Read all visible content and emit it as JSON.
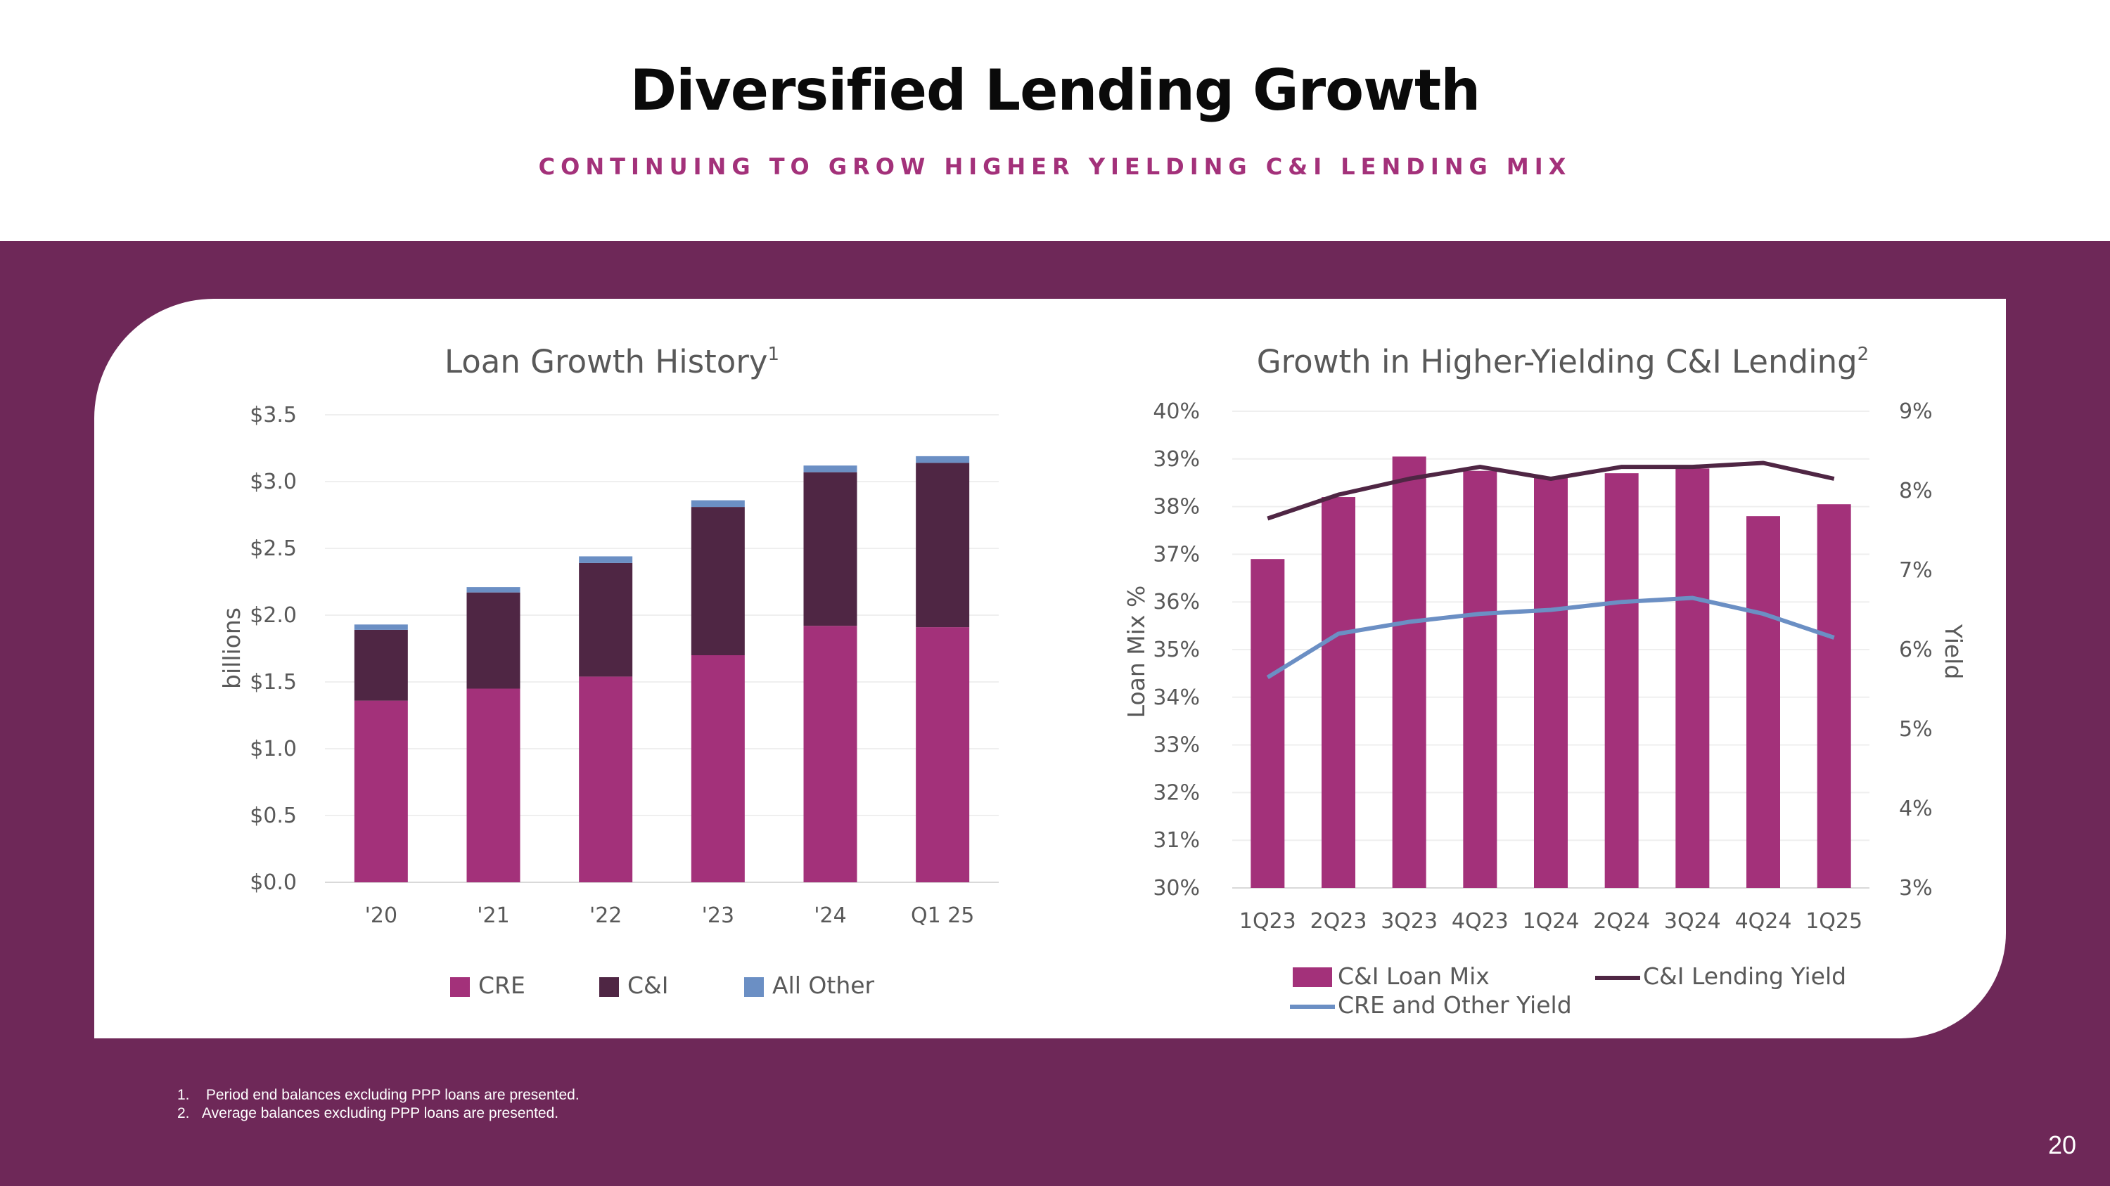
{
  "header": {
    "title": "Diversified Lending Growth",
    "subtitle": "CONTINUING TO GROW HIGHER YIELDING C&I LENDING MIX"
  },
  "colors": {
    "cre": "#a3317a",
    "ci": "#4f2644",
    "other": "#6b8fc4",
    "cre_other_yield_line": "#6b8fc4",
    "ci_yield_line": "#4f2644",
    "band": "#6e2858"
  },
  "chart_data": [
    {
      "type": "bar",
      "stacked": true,
      "title": "Loan Growth History",
      "title_sup": "1",
      "ylabel": "billions",
      "ylim": [
        0,
        3.5
      ],
      "yticks": [
        "$0.0",
        "$0.5",
        "$1.0",
        "$1.5",
        "$2.0",
        "$2.5",
        "$3.0",
        "$3.5"
      ],
      "categories": [
        "'20",
        "'21",
        "'22",
        "'23",
        "'24",
        "Q1 25"
      ],
      "series": [
        {
          "name": "CRE",
          "values": [
            1.36,
            1.45,
            1.54,
            1.7,
            1.92,
            1.91
          ]
        },
        {
          "name": "C&I",
          "values": [
            0.53,
            0.72,
            0.85,
            1.11,
            1.15,
            1.23
          ]
        },
        {
          "name": "All Other",
          "values": [
            0.04,
            0.04,
            0.05,
            0.05,
            0.05,
            0.05
          ]
        }
      ],
      "legend_position": "bottom"
    },
    {
      "type": "bar+line",
      "title": "Growth in Higher-Yielding C&I Lending",
      "title_sup": "2",
      "ylabel_left": "Loan Mix %",
      "ylabel_right": "Yield",
      "ylim_left": [
        30,
        40
      ],
      "ylim_right": [
        3,
        9
      ],
      "yticks_left": [
        "30%",
        "31%",
        "32%",
        "33%",
        "34%",
        "35%",
        "36%",
        "37%",
        "38%",
        "39%",
        "40%"
      ],
      "yticks_right": [
        "3%",
        "4%",
        "5%",
        "6%",
        "7%",
        "8%",
        "9%"
      ],
      "categories": [
        "1Q23",
        "2Q23",
        "3Q23",
        "4Q23",
        "1Q24",
        "2Q24",
        "3Q24",
        "4Q24",
        "1Q25"
      ],
      "bars": {
        "name": "C&I Loan Mix",
        "axis": "left",
        "values": [
          36.9,
          38.2,
          39.05,
          38.75,
          38.6,
          38.7,
          38.8,
          37.8,
          38.05
        ]
      },
      "lines": [
        {
          "name": "C&I Lending Yield",
          "axis": "right",
          "values": [
            7.65,
            7.95,
            8.15,
            8.3,
            8.15,
            8.3,
            8.3,
            8.35,
            8.15
          ]
        },
        {
          "name": "CRE and Other Yield",
          "axis": "right",
          "values": [
            5.65,
            6.2,
            6.35,
            6.45,
            6.5,
            6.6,
            6.65,
            6.45,
            6.15
          ]
        }
      ],
      "legend_position": "bottom"
    }
  ],
  "footnotes": [
    {
      "num": "1.",
      "text": "Period end balances excluding PPP loans are presented."
    },
    {
      "num": "2.",
      "text": "Average balances excluding PPP loans are presented."
    }
  ],
  "page_number": "20"
}
